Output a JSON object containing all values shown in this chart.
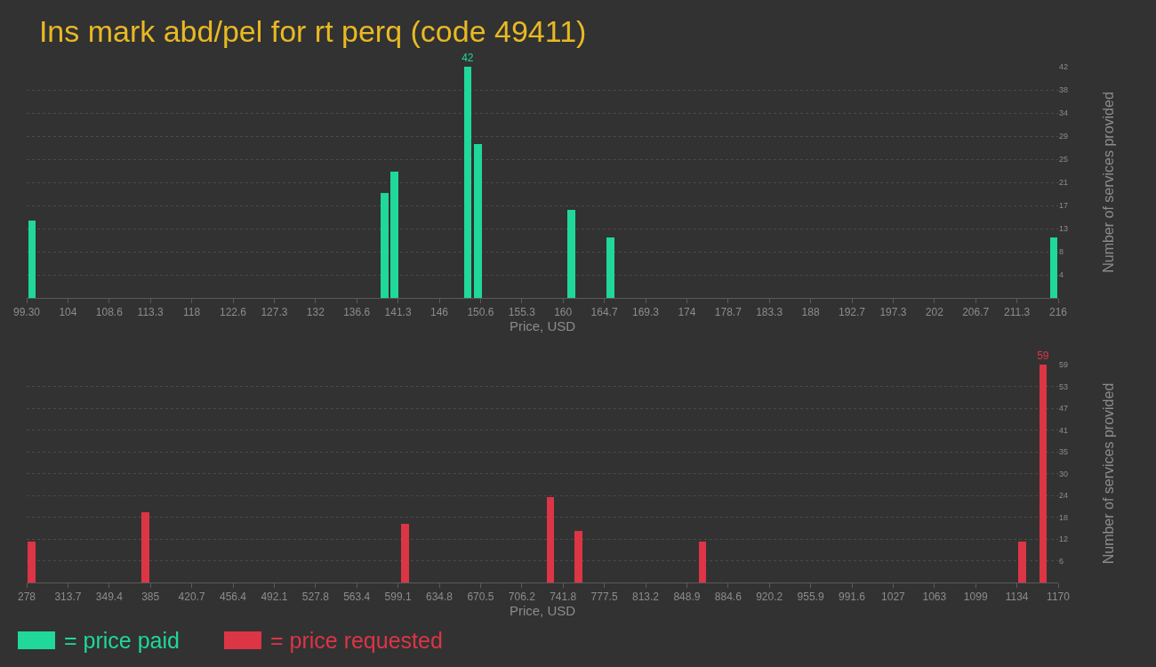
{
  "chart_data": [
    {
      "type": "bar",
      "title": "Ins mark abd/pel for rt perq (code 49411)",
      "xlabel": "Price, USD",
      "ylabel": "Number of services provided",
      "grid": "y",
      "legend": "bottom left",
      "series": [
        {
          "name": "= price paid",
          "color": "#1fd89a",
          "x": [
            99.9,
            139.8,
            140.9,
            149.2,
            150.4,
            160.9,
            165.3,
            215.5
          ],
          "values": [
            14,
            19,
            23,
            42,
            28,
            16,
            11,
            11
          ],
          "value_labels": [
            null,
            null,
            null,
            "42",
            null,
            null,
            null,
            null
          ]
        }
      ],
      "xlim": [
        99.3,
        216
      ],
      "ylim": [
        0,
        42
      ],
      "xticks": [
        {
          "value": 99.3,
          "label": "99.30"
        },
        {
          "value": 103.97,
          "label": "104"
        },
        {
          "value": 108.64,
          "label": "108.6"
        },
        {
          "value": 113.3,
          "label": "113.3"
        },
        {
          "value": 117.97,
          "label": "118"
        },
        {
          "value": 122.64,
          "label": "122.6"
        },
        {
          "value": 127.31,
          "label": "127.3"
        },
        {
          "value": 131.98,
          "label": "132"
        },
        {
          "value": 136.64,
          "label": "136.6"
        },
        {
          "value": 141.31,
          "label": "141.3"
        },
        {
          "value": 145.98,
          "label": "146"
        },
        {
          "value": 150.65,
          "label": "150.6"
        },
        {
          "value": 155.32,
          "label": "155.3"
        },
        {
          "value": 159.98,
          "label": "160"
        },
        {
          "value": 164.65,
          "label": "164.7"
        },
        {
          "value": 169.32,
          "label": "169.3"
        },
        {
          "value": 173.99,
          "label": "174"
        },
        {
          "value": 178.66,
          "label": "178.7"
        },
        {
          "value": 183.32,
          "label": "183.3"
        },
        {
          "value": 187.99,
          "label": "188"
        },
        {
          "value": 192.66,
          "label": "192.7"
        },
        {
          "value": 197.33,
          "label": "197.3"
        },
        202,
        {
          "value": 206.66,
          "label": "206.7"
        },
        {
          "value": 211.33,
          "label": "211.3"
        },
        216
      ],
      "yticks": [
        {
          "value": 4.2,
          "label": "4"
        },
        {
          "value": 8.4,
          "label": "8"
        },
        {
          "value": 12.6,
          "label": "13"
        },
        {
          "value": 16.8,
          "label": "17"
        },
        21,
        {
          "value": 25.2,
          "label": "25"
        },
        {
          "value": 29.4,
          "label": "29"
        },
        {
          "value": 33.6,
          "label": "34"
        },
        {
          "value": 37.8,
          "label": "38"
        },
        42
      ]
    },
    {
      "type": "bar",
      "xlabel": "Price, USD",
      "ylabel": "Number of services provided",
      "grid": "y",
      "legend": "bottom left",
      "series": [
        {
          "name": "= price requested",
          "color": "#dc3545",
          "x": [
            282.3,
            381,
            605.2,
            730.9,
            754.8,
            862.4,
            1139.2,
            1156.9
          ],
          "values": [
            11,
            19,
            16,
            23,
            14,
            11,
            11,
            59
          ],
          "value_labels": [
            null,
            null,
            null,
            null,
            null,
            null,
            null,
            "59"
          ]
        }
      ],
      "xlim": [
        278,
        1170
      ],
      "ylim": [
        0,
        59
      ],
      "xticks": [
        278,
        {
          "value": 313.68,
          "label": "313.7"
        },
        {
          "value": 349.36,
          "label": "349.4"
        },
        {
          "value": 385.04,
          "label": "385"
        },
        {
          "value": 420.72,
          "label": "420.7"
        },
        456.4,
        {
          "value": 492.08,
          "label": "492.1"
        },
        {
          "value": 527.76,
          "label": "527.8"
        },
        {
          "value": 563.44,
          "label": "563.4"
        },
        {
          "value": 599.12,
          "label": "599.1"
        },
        634.8,
        {
          "value": 670.48,
          "label": "670.5"
        },
        {
          "value": 706.16,
          "label": "706.2"
        },
        {
          "value": 741.84,
          "label": "741.8"
        },
        {
          "value": 777.52,
          "label": "777.5"
        },
        813.2,
        {
          "value": 848.88,
          "label": "848.9"
        },
        {
          "value": 884.56,
          "label": "884.6"
        },
        {
          "value": 920.24,
          "label": "920.2"
        },
        {
          "value": 955.92,
          "label": "955.9"
        },
        991.6,
        {
          "value": 1027.28,
          "label": "1027"
        },
        {
          "value": 1062.96,
          "label": "1063"
        },
        {
          "value": 1098.64,
          "label": "1099"
        },
        {
          "value": 1134.32,
          "label": "1134"
        },
        1170
      ],
      "yticks": [
        {
          "value": 5.9,
          "label": "6"
        },
        {
          "value": 11.8,
          "label": "12"
        },
        {
          "value": 17.7,
          "label": "18"
        },
        {
          "value": 23.6,
          "label": "24"
        },
        {
          "value": 29.5,
          "label": "30"
        },
        {
          "value": 35.4,
          "label": "35"
        },
        {
          "value": 41.3,
          "label": "41"
        },
        {
          "value": 47.2,
          "label": "47"
        },
        {
          "value": 53.1,
          "label": "53"
        },
        59
      ]
    }
  ]
}
